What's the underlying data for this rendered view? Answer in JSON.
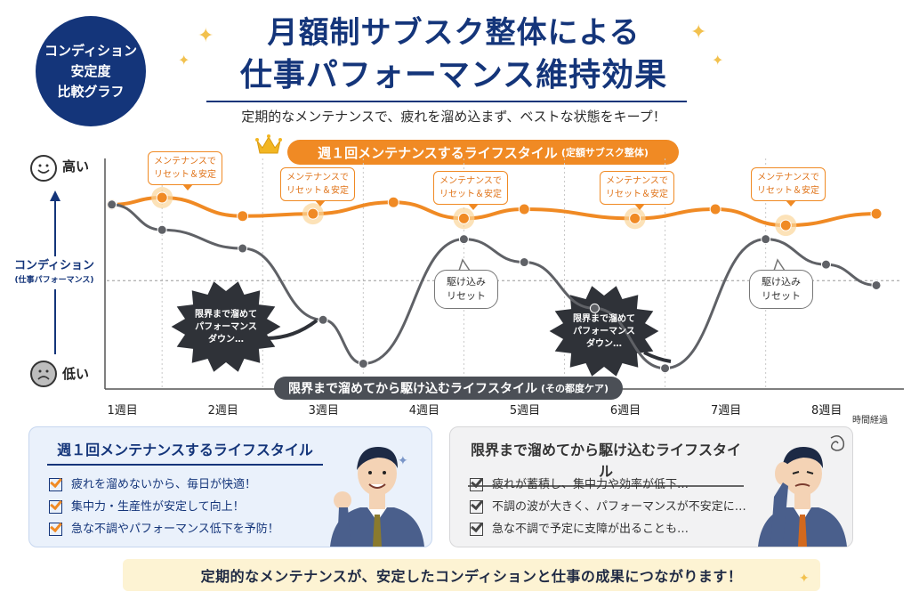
{
  "badge": {
    "line1": "コンディション",
    "line2": "安定度",
    "line3": "比較グラフ"
  },
  "title": {
    "line1": "月額制サブスク整体による",
    "line2": "仕事パフォーマンス維持効果"
  },
  "subtitle": "定期的なメンテナンスで、疲れを溜め込まず、ベストな状態をキープ！",
  "colors": {
    "navy": "#14357a",
    "orange": "#f08a24",
    "gray": "#5f6166",
    "panel_left_bg": "#eaf1fb",
    "panel_right_bg": "#f2f2f3",
    "footer_bg": "#fdf3d3"
  },
  "icons": {
    "crown": "crown-icon",
    "smile": "smile-face-icon",
    "sad": "sad-face-icon",
    "bulb": "lightbulb-icon",
    "check": "checkbox-icon",
    "sparkle": "sparkle-icon"
  },
  "chart_data": {
    "type": "line",
    "x_categories": [
      "1週目",
      "2週目",
      "3週目",
      "4週目",
      "5週目",
      "6週目",
      "7週目",
      "8週目"
    ],
    "xlabel": "時間経過",
    "ylabel": "コンディション",
    "ylabel_sub": "(仕事パフォーマンス)",
    "y_high_label": "高い",
    "y_low_label": "低い",
    "ylim": [
      0,
      100
    ],
    "reference_level": 47,
    "series": [
      {
        "name": "週１回メンテナンスするライフスタイル",
        "name_note": "(定額サブスク整体)",
        "color": "#f08a24",
        "points": [
          [
            1,
            80
          ],
          [
            1.5,
            83
          ],
          [
            2.3,
            75
          ],
          [
            3,
            76
          ],
          [
            3.8,
            81
          ],
          [
            4.5,
            74
          ],
          [
            5.1,
            78
          ],
          [
            6.2,
            74
          ],
          [
            7,
            78
          ],
          [
            7.7,
            71
          ],
          [
            8.6,
            76
          ]
        ],
        "highlighted_x": [
          1.5,
          3,
          4.5,
          6.2,
          7.7
        ]
      },
      {
        "name": "限界まで溜めてから駆け込むライフスタイル",
        "name_note": "(その都度ケア)",
        "color": "#5f6166",
        "points": [
          [
            1,
            80
          ],
          [
            1.5,
            69
          ],
          [
            2.3,
            61
          ],
          [
            3.1,
            30
          ],
          [
            3.5,
            11
          ],
          [
            4.5,
            65
          ],
          [
            5.1,
            55
          ],
          [
            5.8,
            35
          ],
          [
            6.5,
            9
          ],
          [
            7.5,
            65
          ],
          [
            8.1,
            54
          ],
          [
            8.6,
            45
          ]
        ]
      }
    ],
    "grid": "vertical dotted",
    "annotations": {
      "orange_callout": "メンテナンスで リセット＆安定",
      "reset_bubble": "駆け込み リセット",
      "burst": "限界まで溜めて パフォーマンス ダウン…"
    }
  },
  "callouts": [
    {
      "l1": "メンテナンスで",
      "l2": "リセット＆安定"
    },
    {
      "l1": "メンテナンスで",
      "l2": "リセット＆安定"
    },
    {
      "l1": "メンテナンスで",
      "l2": "リセット＆安定"
    },
    {
      "l1": "メンテナンスで",
      "l2": "リセット＆安定"
    },
    {
      "l1": "メンテナンスで",
      "l2": "リセット＆安定"
    }
  ],
  "bubbles": [
    {
      "l1": "駆け込み",
      "l2": "リセット"
    },
    {
      "l1": "駆け込み",
      "l2": "リセット"
    }
  ],
  "bursts": [
    {
      "l1": "限界まで溜めて",
      "l2": "パフォーマンス",
      "l3": "ダウン…"
    },
    {
      "l1": "限界まで溜めて",
      "l2": "パフォーマンス",
      "l3": "ダウン…"
    }
  ],
  "banner_orange": {
    "main": "週１回メンテナンスするライフスタイル",
    "note": "(定額サブスク整体)"
  },
  "banner_gray": {
    "main": "限界まで溜めてから駆け込むライフスタイル",
    "note": "(その都度ケア)"
  },
  "panel_left": {
    "title": "週１回メンテナンスするライフスタイル",
    "items": [
      "疲れを溜めないから、毎日が快適！",
      "集中力・生産性が安定して向上！",
      "急な不調やパフォーマンス低下を予防！"
    ]
  },
  "panel_right": {
    "title": "限界まで溜めてから駆け込むライフスタイル",
    "items": [
      "疲れが蓄積し、集中力や効率が低下…",
      "不調の波が大きく、パフォーマンスが不安定に…",
      "急な不調で予定に支障が出ることも…"
    ]
  },
  "footer": "定期的なメンテナンスが、安定したコンディションと仕事の成果につながります！"
}
